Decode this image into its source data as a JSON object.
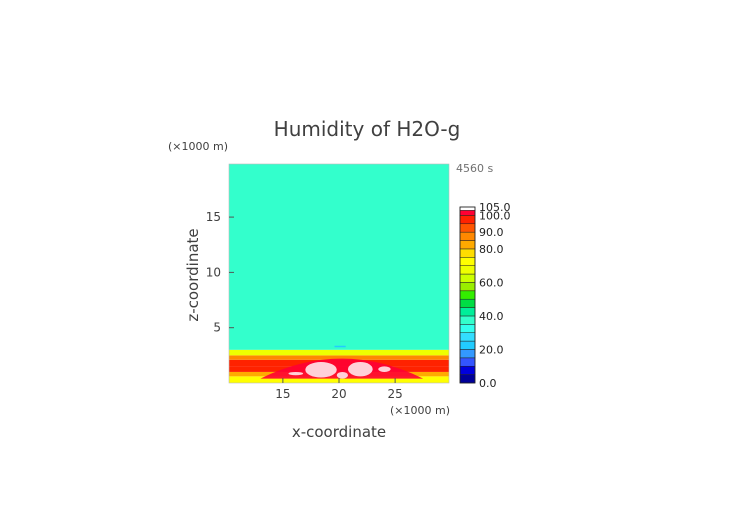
{
  "chart_data": {
    "type": "heatmap",
    "title": "Humidity of H2O-g",
    "time_label": "4560 s",
    "xlabel": "x-coordinate",
    "ylabel": "z-coordinate",
    "x_unit": "(×1000 m)",
    "y_unit": "(×1000 m)",
    "xlim": [
      10.2,
      29.8
    ],
    "ylim": [
      0,
      19.8
    ],
    "x_ticks": [
      15,
      20,
      25
    ],
    "y_ticks": [
      5,
      10,
      15
    ],
    "grid": false,
    "legend_position": "right",
    "colorbar": {
      "labels": [
        "105.0",
        "100.0",
        "90.0",
        "80.0",
        "60.0",
        "40.0",
        "20.0",
        "0.0"
      ],
      "bands": [
        {
          "from": 0,
          "to": 5,
          "color": "#000099"
        },
        {
          "from": 5,
          "to": 10,
          "color": "#0000dd"
        },
        {
          "from": 10,
          "to": 15,
          "color": "#3355ff"
        },
        {
          "from": 15,
          "to": 20,
          "color": "#3399ff"
        },
        {
          "from": 20,
          "to": 25,
          "color": "#22ccff"
        },
        {
          "from": 25,
          "to": 30,
          "color": "#33ddff"
        },
        {
          "from": 30,
          "to": 35,
          "color": "#33ffee"
        },
        {
          "from": 35,
          "to": 40,
          "color": "#33ffcc"
        },
        {
          "from": 40,
          "to": 45,
          "color": "#00ee99"
        },
        {
          "from": 45,
          "to": 50,
          "color": "#00dd44"
        },
        {
          "from": 50,
          "to": 55,
          "color": "#33ee00"
        },
        {
          "from": 55,
          "to": 60,
          "color": "#99ee00"
        },
        {
          "from": 60,
          "to": 65,
          "color": "#ccff00"
        },
        {
          "from": 65,
          "to": 70,
          "color": "#eeff00"
        },
        {
          "from": 70,
          "to": 75,
          "color": "#ffff00"
        },
        {
          "from": 75,
          "to": 80,
          "color": "#ffdd00"
        },
        {
          "from": 80,
          "to": 85,
          "color": "#ffaa00"
        },
        {
          "from": 85,
          "to": 90,
          "color": "#ff8800"
        },
        {
          "from": 90,
          "to": 95,
          "color": "#ff5500"
        },
        {
          "from": 95,
          "to": 100,
          "color": "#ff2200"
        },
        {
          "from": 100,
          "to": 103,
          "color": "#ff0033"
        },
        {
          "from": 103,
          "to": 105,
          "color": "#ffffff"
        }
      ]
    },
    "field": [
      {
        "z_from": 0.0,
        "z_to": 0.6,
        "value": 72
      },
      {
        "z_from": 0.6,
        "z_to": 1.0,
        "value": 82
      },
      {
        "z_from": 1.0,
        "z_to": 1.5,
        "value": 97
      },
      {
        "z_from": 1.5,
        "z_to": 2.1,
        "value": 99
      },
      {
        "z_from": 2.1,
        "z_to": 2.5,
        "value": 88
      },
      {
        "z_from": 2.5,
        "z_to": 3.0,
        "value": 68
      },
      {
        "z_from": 3.0,
        "z_to": 19.8,
        "value": 37
      }
    ],
    "supersaturated_zones": [
      {
        "x": [
          15.5,
          16.8
        ],
        "z": [
          0.7,
          1.0
        ]
      },
      {
        "x": [
          17.0,
          19.8
        ],
        "z": [
          0.5,
          1.9
        ]
      },
      {
        "x": [
          19.8,
          20.8
        ],
        "z": [
          0.4,
          1.0
        ]
      },
      {
        "x": [
          20.8,
          23.0
        ],
        "z": [
          0.6,
          1.9
        ]
      },
      {
        "x": [
          23.5,
          24.6
        ],
        "z": [
          1.0,
          1.5
        ]
      }
    ],
    "saturated_arch": {
      "x": [
        13.0,
        27.5
      ],
      "z_peak": 2.2,
      "z_base": 0.4,
      "value": 101
    },
    "low_streak": {
      "x": [
        19.6,
        20.6
      ],
      "z": 3.3,
      "value": 22
    }
  }
}
